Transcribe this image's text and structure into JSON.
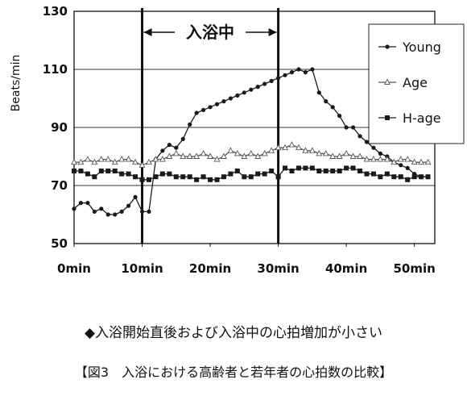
{
  "chart_data": {
    "type": "line",
    "ylabel": "Beats/min",
    "ylim": [
      50,
      130
    ],
    "yticks": [
      50,
      70,
      90,
      110,
      130
    ],
    "xlim": [
      0,
      53
    ],
    "xticks": [
      "0min",
      "10min",
      "20min",
      "30min",
      "40min",
      "50min"
    ],
    "xtick_values": [
      0,
      10,
      20,
      30,
      40,
      50
    ],
    "grid": "horizontal at 70, 90, 110",
    "legend_position": "top-right",
    "bath_period": {
      "label": "入浴中",
      "start": 10,
      "end": 30
    },
    "x": [
      0,
      1,
      2,
      3,
      4,
      5,
      6,
      7,
      8,
      9,
      10,
      11,
      12,
      13,
      14,
      15,
      16,
      17,
      18,
      19,
      20,
      21,
      22,
      23,
      24,
      25,
      26,
      27,
      28,
      29,
      30,
      31,
      32,
      33,
      34,
      35,
      36,
      37,
      38,
      39,
      40,
      41,
      42,
      43,
      44,
      45,
      46,
      47,
      48,
      49,
      50,
      51,
      52
    ],
    "series": [
      {
        "name": "Young",
        "marker": "dot",
        "color": "#1a1a1a",
        "values": [
          62,
          64,
          64,
          61,
          62,
          60,
          60,
          61,
          63,
          66,
          61,
          61,
          79,
          82,
          84,
          83,
          86,
          91,
          95,
          96,
          97,
          98,
          99,
          100,
          101,
          102,
          103,
          104,
          105,
          106,
          107,
          108,
          109,
          110,
          109,
          110,
          102,
          99,
          97,
          94,
          90,
          90,
          87,
          85,
          83,
          81,
          80,
          78,
          77,
          76,
          74,
          73,
          73
        ]
      },
      {
        "name": "Age",
        "marker": "triangle",
        "color": "#555555",
        "values": [
          78,
          78,
          79,
          78,
          79,
          79,
          78,
          79,
          79,
          78,
          77,
          78,
          79,
          79,
          80,
          81,
          80,
          80,
          80,
          81,
          80,
          79,
          80,
          82,
          81,
          80,
          81,
          80,
          81,
          82,
          83,
          83,
          84,
          83,
          82,
          82,
          81,
          81,
          80,
          80,
          81,
          80,
          80,
          79,
          79,
          79,
          79,
          78,
          79,
          79,
          78,
          78,
          78
        ]
      },
      {
        "name": "H-age",
        "marker": "square",
        "color": "#1a1a1a",
        "values": [
          75,
          75,
          74,
          73,
          75,
          75,
          75,
          74,
          74,
          73,
          72,
          72,
          73,
          74,
          74,
          73,
          73,
          73,
          72,
          73,
          72,
          72,
          73,
          74,
          75,
          73,
          73,
          74,
          74,
          75,
          73,
          76,
          75,
          76,
          76,
          76,
          75,
          75,
          75,
          75,
          76,
          76,
          75,
          74,
          74,
          73,
          74,
          73,
          73,
          72,
          73,
          73,
          73
        ]
      }
    ]
  },
  "note": "◆入浴開始直後および入浴中の心拍増加が小さい",
  "caption": "【図3　入浴における高齢者と若年者の心拍数の比較】"
}
